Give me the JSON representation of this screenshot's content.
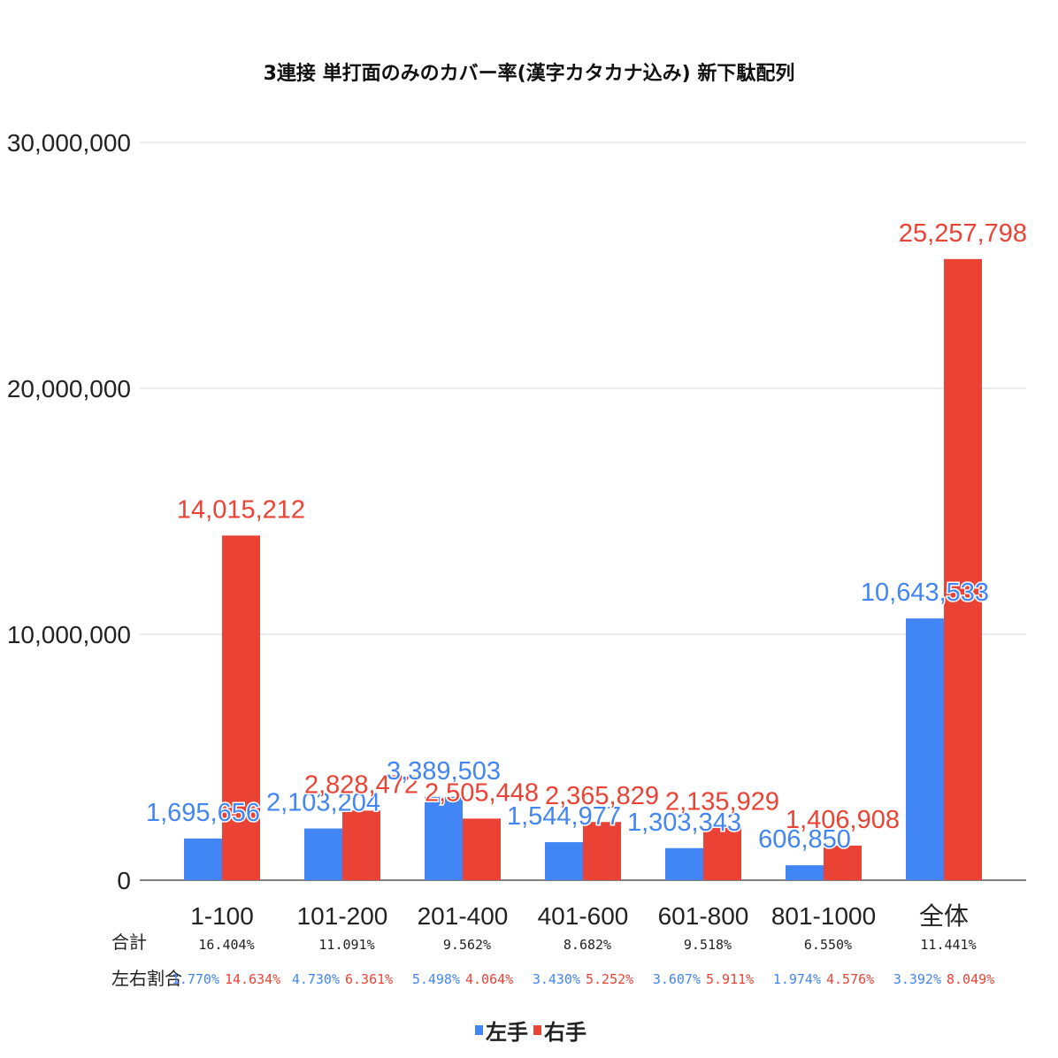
{
  "colors": {
    "left": "#4285f4",
    "right": "#ea4335",
    "grid": "#d9d9d9",
    "axis": "#333333",
    "text": "#222222"
  },
  "chart_data": {
    "type": "bar",
    "title": "3連接 単打面のみのカバー率(漢字カタカナ込み) 新下駄配列",
    "ylim": [
      0,
      30000000
    ],
    "yticks": [
      "0",
      "10,000,000",
      "20,000,000",
      "30,000,000"
    ],
    "ytick_values": [
      0,
      10000000,
      20000000,
      30000000
    ],
    "grid": true,
    "legend_position": "bottom",
    "categories": [
      "1-100",
      "101-200",
      "201-400",
      "401-600",
      "601-800",
      "801-1000",
      "全体"
    ],
    "series": [
      {
        "name": "左手",
        "key": "left",
        "values": [
          1695656,
          2103204,
          3389503,
          1544977,
          1303343,
          606850,
          10643533
        ],
        "labels": [
          "1,695,656",
          "2,103,204",
          "3,389,503",
          "1,544,977",
          "1,303,343",
          "606,850",
          "10,643,533"
        ]
      },
      {
        "name": "右手",
        "key": "right",
        "values": [
          14015212,
          2828472,
          2505448,
          2365829,
          2135929,
          1406908,
          25257798
        ],
        "labels": [
          "14,015,212",
          "2,828,472",
          "2,505,448",
          "2,365,829",
          "2,135,929",
          "1,406,908",
          "25,257,798"
        ]
      }
    ]
  },
  "table": {
    "total_label": "合計",
    "ratio_label": "左右割合",
    "totals": [
      "16.404%",
      "11.091%",
      "9.562%",
      "8.682%",
      "9.518%",
      "6.550%",
      "11.441%"
    ],
    "left_ratios": [
      "1.770%",
      "4.730%",
      "5.498%",
      "3.430%",
      "3.607%",
      "1.974%",
      "3.392%"
    ],
    "right_ratios": [
      "14.634%",
      "6.361%",
      "4.064%",
      "5.252%",
      "5.911%",
      "4.576%",
      "8.049%"
    ]
  },
  "legend": {
    "left": "左手",
    "right": "右手"
  }
}
